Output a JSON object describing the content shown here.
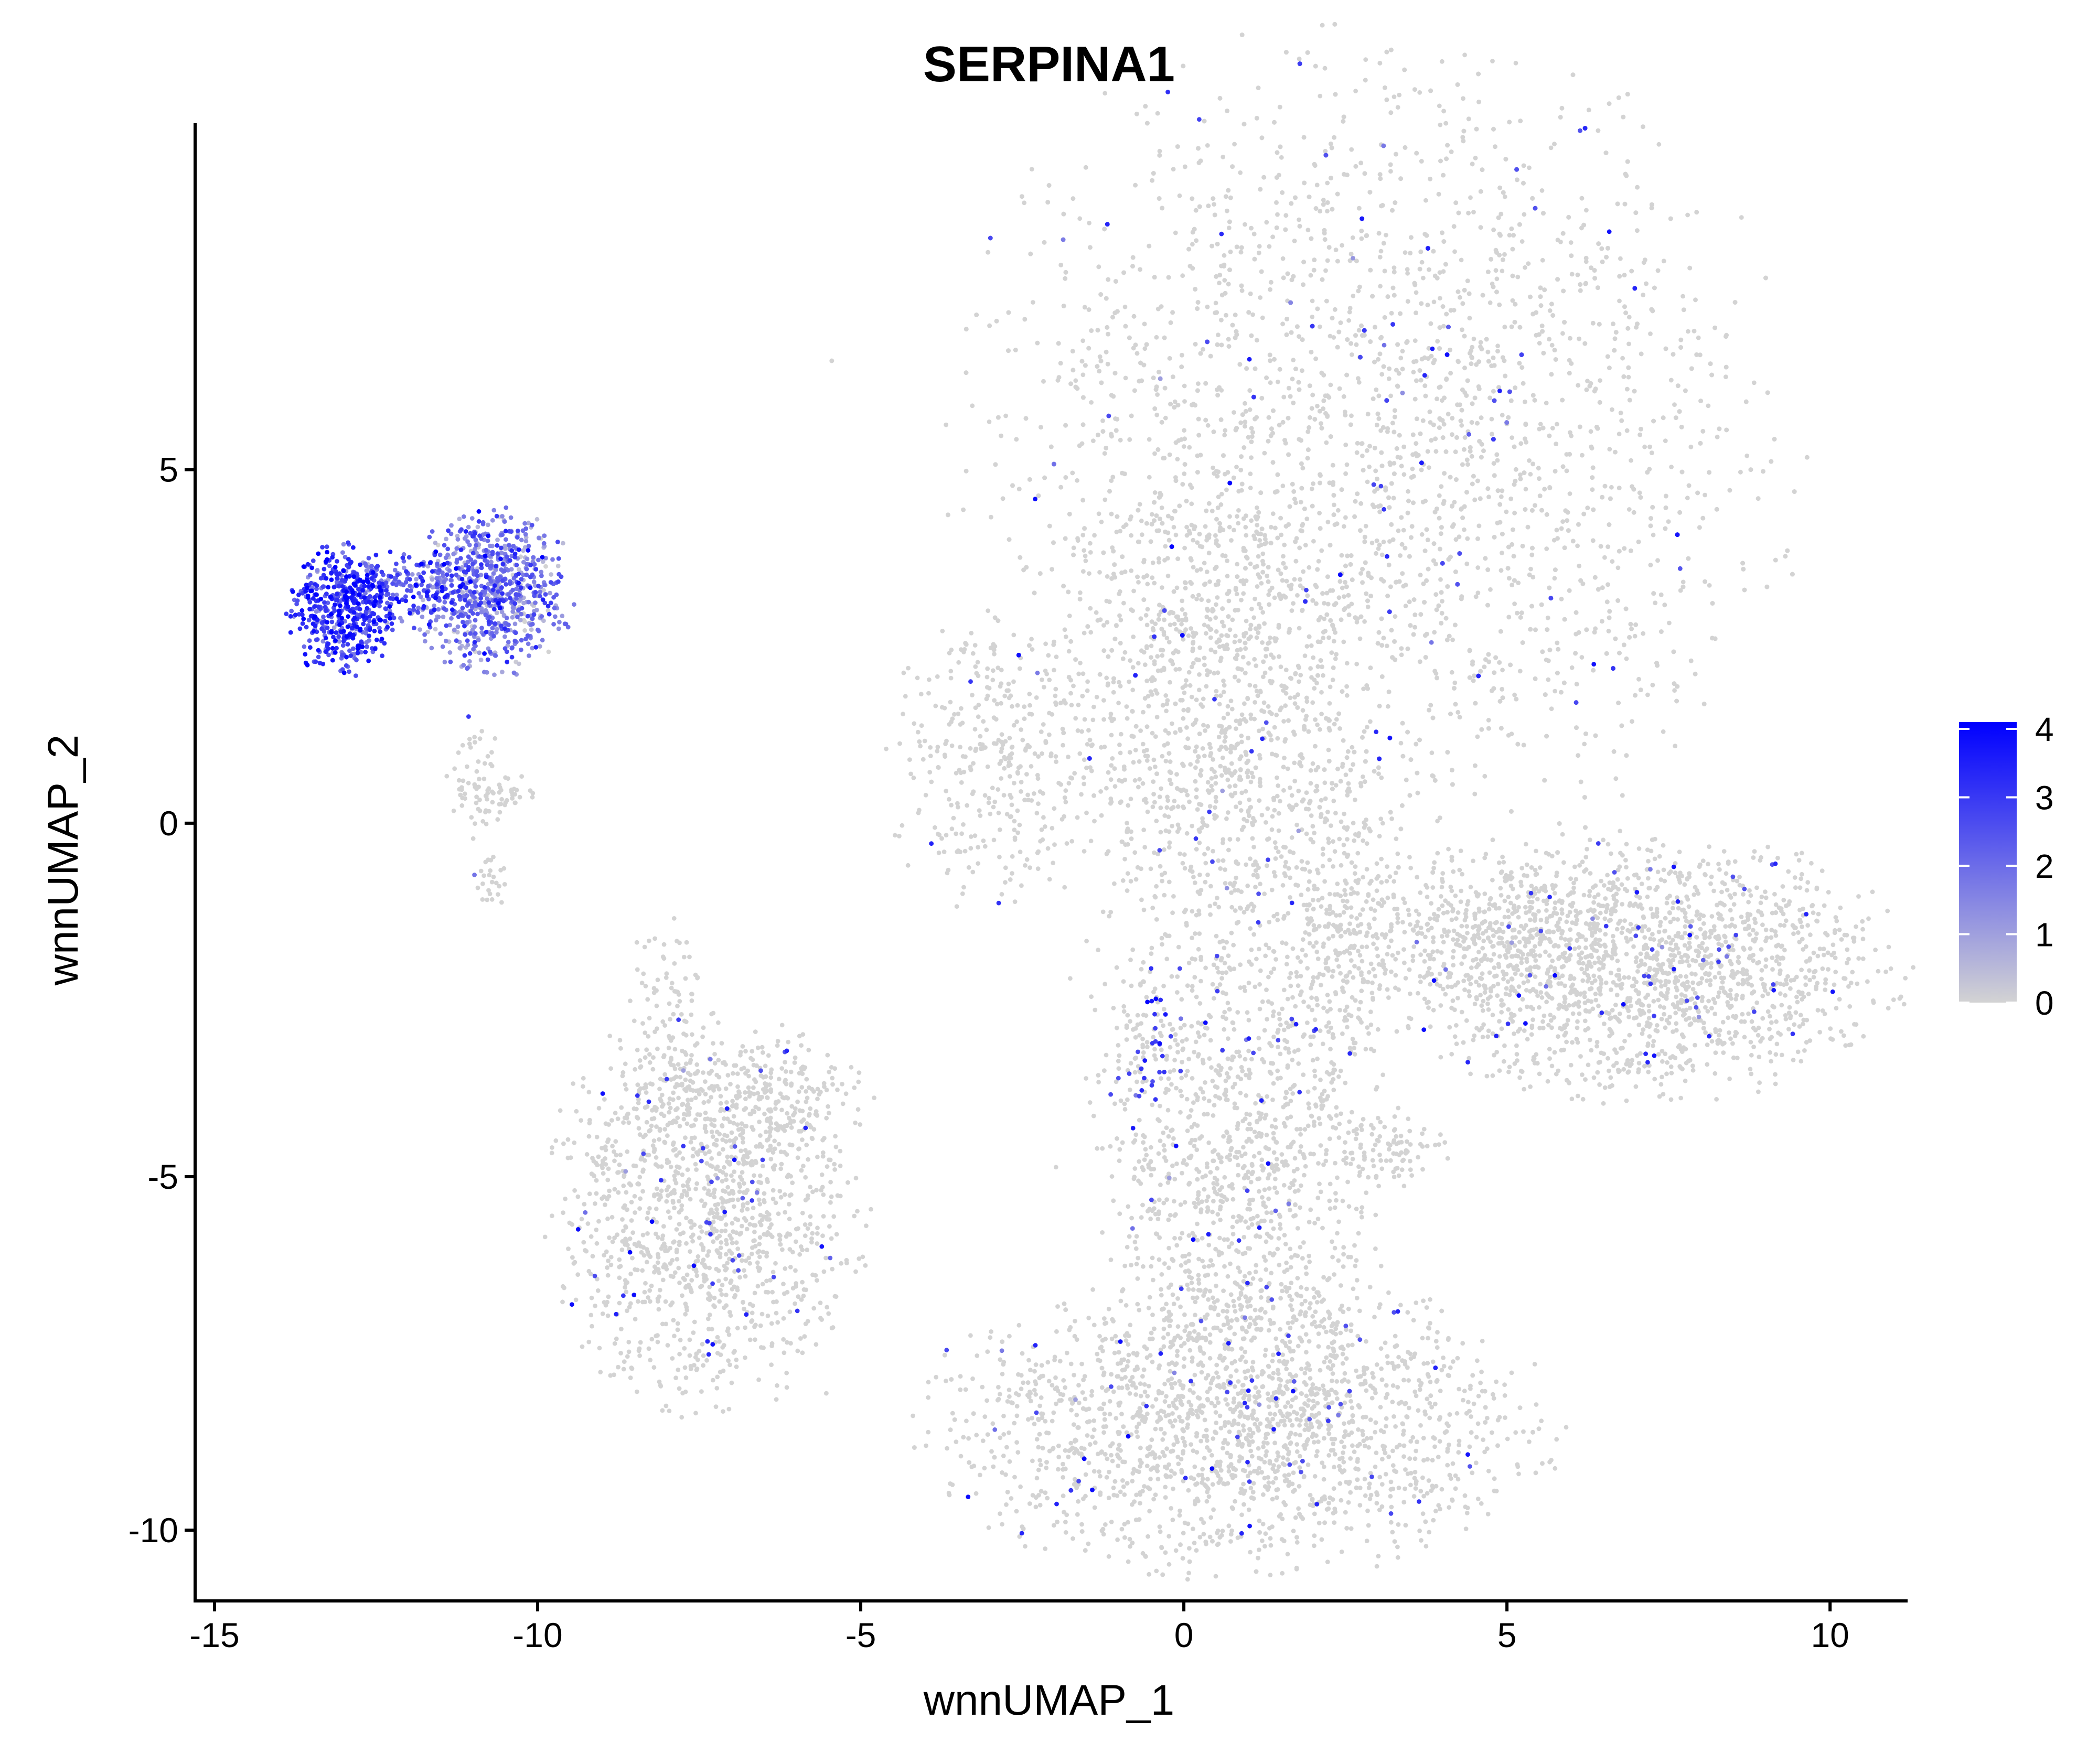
{
  "chart_data": {
    "type": "scatter",
    "title": "SERPINA1",
    "xlabel": "wnnUMAP_1",
    "ylabel": "wnnUMAP_2",
    "xlim": [
      -15.3,
      11.2
    ],
    "ylim": [
      -11.0,
      9.9
    ],
    "x_ticks": [
      -15,
      -10,
      -5,
      0,
      5,
      10
    ],
    "x_tick_labels": [
      "-15",
      "-10",
      "-5",
      "0",
      "5",
      "10"
    ],
    "y_ticks": [
      5,
      0,
      -5,
      -10
    ],
    "y_tick_labels": [
      "5",
      "0",
      "-5",
      "-10"
    ],
    "grid": false,
    "legend": {
      "placement": "right",
      "type": "colorbar",
      "range": [
        0,
        4.1
      ],
      "ticks": [
        4,
        3,
        2,
        1,
        0
      ],
      "tick_labels": [
        "4",
        "3",
        "2",
        "1",
        "0"
      ],
      "color_low": "#d3d3d3",
      "color_high": "#0000ff"
    },
    "clusters": [
      {
        "cx": 2.9,
        "cy": 5.3,
        "sx": 2.9,
        "sy": 2.7,
        "n": 5200,
        "expr": 0.02
      },
      {
        "cx": 0.4,
        "cy": 2.2,
        "sx": 1.1,
        "sy": 1.4,
        "n": 700,
        "expr": 0.0
      },
      {
        "cx": -2.9,
        "cy": 0.9,
        "sx": 0.8,
        "sy": 1.0,
        "n": 350,
        "expr": 0.0
      },
      {
        "cx": 0.5,
        "cy": -1.5,
        "sx": 1.0,
        "sy": 2.0,
        "n": 600,
        "expr": 0.02
      },
      {
        "cx": 2.3,
        "cy": -1.6,
        "sx": 0.5,
        "sy": 1.3,
        "n": 350,
        "expr": 0.0
      },
      {
        "cx": 7.1,
        "cy": -2.0,
        "sx": 1.8,
        "sy": 0.85,
        "n": 1700,
        "expr": 0.02
      },
      {
        "cx": 4.6,
        "cy": -1.5,
        "sx": 1.2,
        "sy": 0.5,
        "n": 350,
        "expr": 0.0
      },
      {
        "cx": -7.4,
        "cy": -5.4,
        "sx": 1.1,
        "sy": 1.3,
        "n": 1300,
        "expr": 0.02
      },
      {
        "cx": -6.8,
        "cy": -3.9,
        "sx": 0.9,
        "sy": 0.35,
        "n": 200,
        "expr": 0.0
      },
      {
        "cx": -8.0,
        "cy": -2.6,
        "sx": 0.25,
        "sy": 0.7,
        "n": 80,
        "expr": 0.0
      },
      {
        "cx": 0.9,
        "cy": -5.6,
        "sx": 1.0,
        "sy": 1.6,
        "n": 900,
        "expr": 0.02
      },
      {
        "cx": 0.8,
        "cy": -8.5,
        "sx": 2.2,
        "sy": 0.95,
        "n": 2000,
        "expr": 0.02
      },
      {
        "cx": 3.2,
        "cy": -4.6,
        "sx": 0.4,
        "sy": 0.25,
        "n": 90,
        "expr": 0.0
      },
      {
        "cx": -0.6,
        "cy": -3.2,
        "sx": 0.3,
        "sy": 0.6,
        "n": 80,
        "expr": 0.3
      },
      {
        "cx": -13.0,
        "cy": 3.0,
        "sx": 0.38,
        "sy": 0.42,
        "n": 500,
        "expr": 2.9
      },
      {
        "cx": -12.0,
        "cy": 3.3,
        "sx": 0.5,
        "sy": 0.25,
        "n": 220,
        "expr": 2.5
      },
      {
        "cx": -10.7,
        "cy": 3.3,
        "sx": 0.55,
        "sy": 0.55,
        "n": 750,
        "expr": 1.7
      },
      {
        "cx": -11.0,
        "cy": 0.6,
        "sx": 0.2,
        "sy": 0.4,
        "n": 60,
        "expr": 0.0
      },
      {
        "cx": -10.4,
        "cy": 0.4,
        "sx": 0.2,
        "sy": 0.15,
        "n": 30,
        "expr": 0.0
      },
      {
        "cx": -10.7,
        "cy": -0.8,
        "sx": 0.12,
        "sy": 0.2,
        "n": 25,
        "expr": 0.0
      }
    ]
  }
}
